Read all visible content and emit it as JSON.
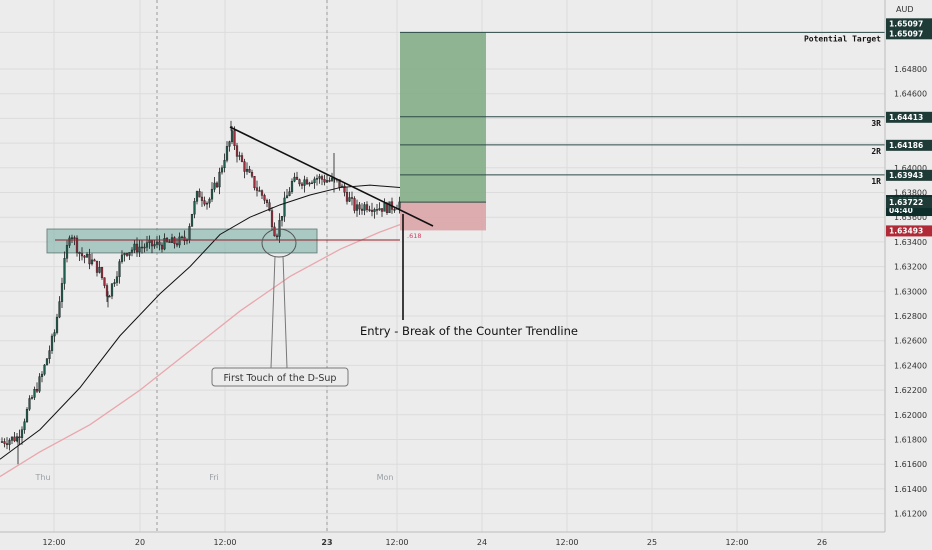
{
  "chart_data": {
    "type": "candlestick",
    "currency": "AUD",
    "y_ticks": [
      "1.65097",
      "1.64800",
      "1.64600",
      "1.64400",
      "1.64200",
      "1.64000",
      "1.63800",
      "1.63600",
      "1.63400",
      "1.63200",
      "1.63000",
      "1.62800",
      "1.62600",
      "1.62400",
      "1.62200",
      "1.62000",
      "1.61800",
      "1.61600",
      "1.61400",
      "1.61200"
    ],
    "x_ticks": [
      "12:00",
      "20",
      "12:00",
      "23",
      "12:00",
      "24",
      "12:00",
      "25",
      "12:00",
      "26"
    ],
    "day_labels": [
      "Thu",
      "Fri",
      "Mon"
    ],
    "price_badges": [
      {
        "name": "potential-target",
        "lines": [
          "1.65097",
          "1.65097"
        ],
        "price": 1.65097,
        "color": "#1f3b38"
      },
      {
        "name": "3r",
        "lines": [
          "1.64413"
        ],
        "price": 1.64413,
        "color": "#1f3b38"
      },
      {
        "name": "2r",
        "lines": [
          "1.64186"
        ],
        "price": 1.64186,
        "color": "#1f3b38"
      },
      {
        "name": "1r",
        "lines": [
          "1.63943"
        ],
        "price": 1.63943,
        "color": "#1f3b38"
      },
      {
        "name": "current",
        "lines": [
          "1.63739",
          "04:40"
        ],
        "price": 1.63739,
        "color": "#0d2e2b"
      },
      {
        "name": "entry",
        "lines": [
          "1.63722"
        ],
        "price": 1.63722,
        "color": "#1f3b38"
      },
      {
        "name": "stop",
        "lines": [
          "1.63493"
        ],
        "price": 1.63493,
        "color": "#b02a37"
      }
    ],
    "levels": [
      {
        "label": "Potential Target",
        "price": 1.65097
      },
      {
        "label": "3R",
        "price": 1.64413
      },
      {
        "label": "2R",
        "price": 1.64186
      },
      {
        "label": "1R",
        "price": 1.63943
      }
    ],
    "position": {
      "entry": 1.63722,
      "stop": 1.63493,
      "target": 1.65097
    },
    "support_zone": {
      "top": 1.63504,
      "bottom": 1.63311
    },
    "fib_label": ".618",
    "trendline": {
      "from": {
        "x": 0.247,
        "price": 1.63862
      },
      "to": {
        "x": 0.465,
        "price": 1.63683
      }
    }
  },
  "annotations": {
    "entry": "Entry - Break of the Counter Trendline",
    "touch": "First Touch of the D-Sup"
  },
  "colors": {
    "background": "#ececec",
    "grid": "#dcdcdc",
    "profit_zone": "#7faa82",
    "loss_zone": "#d9a1a4",
    "support_zone": "#8fbbb3",
    "trendline": "#111111",
    "ma_slow": "#e9a7ad",
    "ma_fast": "#111111"
  }
}
